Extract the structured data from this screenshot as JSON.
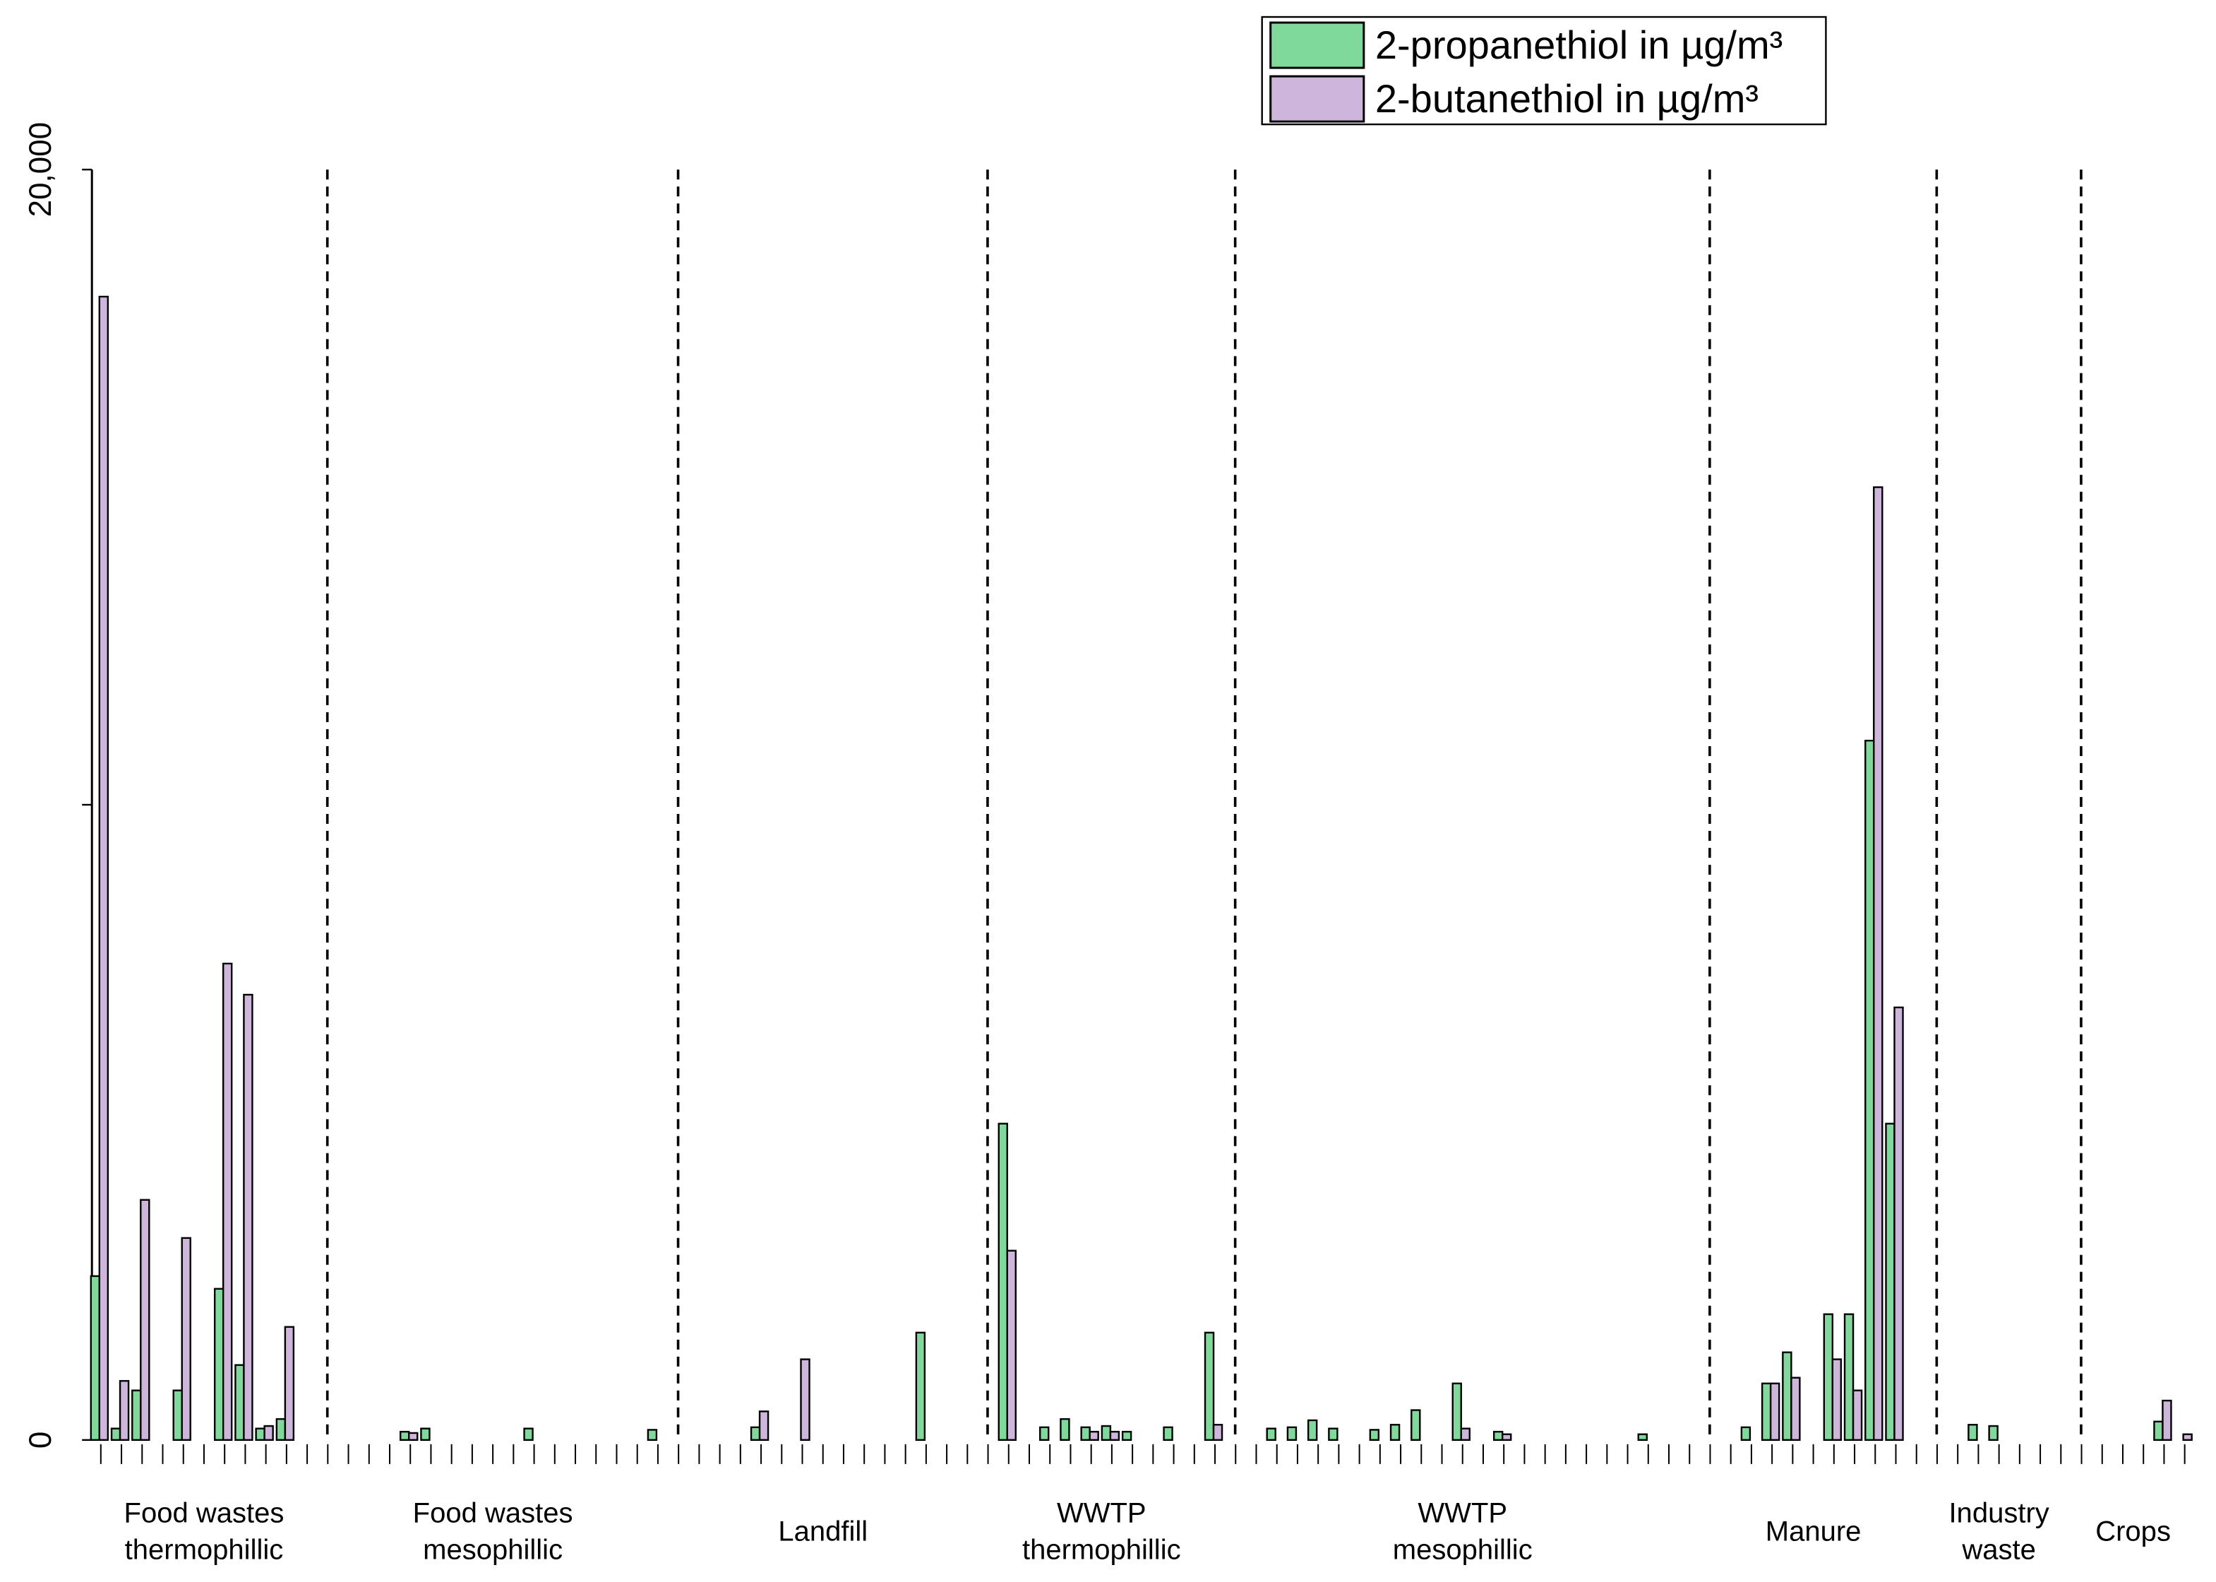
{
  "chart_data": {
    "type": "bar",
    "groups": [
      {
        "name": [
          "Food wastes",
          "thermophillic"
        ],
        "categories": [
          null,
          null,
          null,
          null,
          null,
          null,
          null,
          null,
          null,
          null,
          null
        ]
      },
      {
        "name": [
          "Food wastes",
          "mesophillic"
        ],
        "categories": [
          null,
          null,
          null,
          null,
          null,
          null,
          null,
          null,
          null,
          null,
          null,
          null,
          null,
          null,
          null,
          null,
          null
        ]
      },
      {
        "name": [
          "Landfill"
        ],
        "categories": [
          null,
          null,
          null,
          null,
          null,
          null,
          null,
          null,
          null,
          null,
          null,
          null,
          null,
          null,
          null
        ]
      },
      {
        "name": [
          "WWTP",
          "thermophillic"
        ],
        "categories": [
          null,
          null,
          null,
          null,
          null,
          null,
          null,
          null,
          null,
          null,
          null,
          null
        ]
      },
      {
        "name": [
          "WWTP",
          "mesophillic"
        ],
        "categories": [
          null,
          null,
          null,
          null,
          null,
          null,
          null,
          null,
          null,
          null,
          null,
          null,
          null,
          null,
          null,
          null,
          null,
          null,
          null,
          null,
          null,
          null,
          null
        ]
      },
      {
        "name": [
          "Manure"
        ],
        "categories": [
          null,
          null,
          null,
          null,
          null,
          null,
          null,
          null,
          null,
          null,
          null
        ]
      },
      {
        "name": [
          "Industry",
          "waste"
        ],
        "categories": [
          null,
          null,
          null,
          null,
          null,
          null,
          null
        ]
      },
      {
        "name": [
          "Crops"
        ],
        "categories": [
          null,
          null,
          null,
          null,
          null,
          null
        ]
      }
    ],
    "series": [
      {
        "name": "2-propanethiol in µg/m³",
        "color": "#7fd99a",
        "values": [
          2580,
          180,
          780,
          0,
          780,
          0,
          2380,
          1180,
          180,
          330,
          0,
          0,
          0,
          0,
          0,
          130,
          180,
          0,
          0,
          0,
          0,
          180,
          0,
          0,
          0,
          0,
          0,
          160,
          0,
          0,
          0,
          0,
          200,
          0,
          0,
          0,
          0,
          0,
          0,
          0,
          1690,
          0,
          0,
          0,
          4980,
          0,
          200,
          330,
          200,
          220,
          130,
          0,
          200,
          0,
          1690,
          0,
          0,
          180,
          200,
          310,
          180,
          0,
          160,
          240,
          470,
          0,
          890,
          0,
          130,
          0,
          0,
          0,
          0,
          0,
          0,
          90,
          0,
          0,
          0,
          0,
          200,
          890,
          1380,
          0,
          1980,
          1980,
          11010,
          4980,
          0,
          0,
          0,
          240,
          220,
          0,
          0,
          0,
          0,
          0,
          0,
          0,
          290,
          0
        ]
      },
      {
        "name": "2-butanethiol in µg/m³",
        "color": "#cdb5dc",
        "values": [
          18000,
          930,
          3780,
          0,
          3180,
          0,
          7500,
          7010,
          220,
          1780,
          0,
          0,
          0,
          0,
          0,
          110,
          0,
          0,
          0,
          0,
          0,
          0,
          0,
          0,
          0,
          0,
          0,
          0,
          0,
          0,
          0,
          0,
          450,
          0,
          1270,
          0,
          0,
          0,
          0,
          0,
          0,
          0,
          0,
          0,
          2980,
          0,
          0,
          0,
          130,
          130,
          0,
          0,
          0,
          0,
          240,
          0,
          0,
          0,
          0,
          0,
          0,
          0,
          0,
          0,
          0,
          0,
          180,
          0,
          90,
          0,
          0,
          0,
          0,
          0,
          0,
          0,
          0,
          0,
          0,
          0,
          0,
          890,
          980,
          0,
          1270,
          780,
          15000,
          6810,
          0,
          0,
          0,
          0,
          0,
          0,
          0,
          0,
          0,
          0,
          0,
          0,
          620,
          90
        ]
      }
    ],
    "ylim": [
      0,
      20000
    ],
    "yticks": [
      0,
      {
        "value": 10000,
        "label": null
      },
      {
        "value": 20000,
        "label": "20,000"
      }
    ],
    "legend": "top"
  }
}
